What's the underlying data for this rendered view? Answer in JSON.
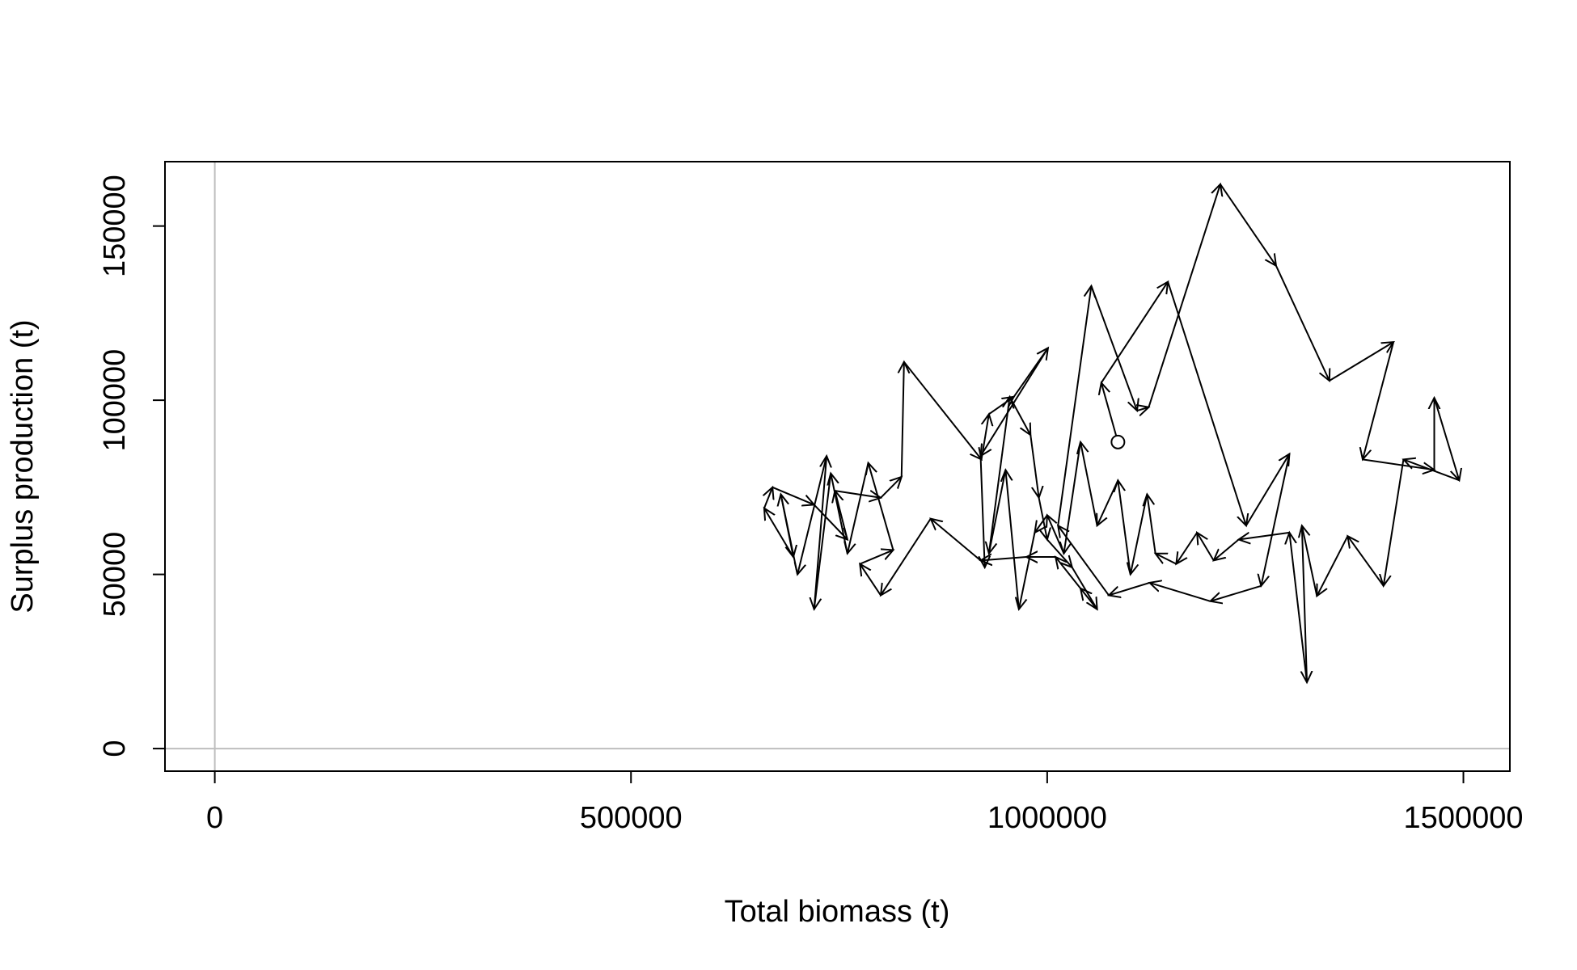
{
  "chart_data": {
    "type": "arrow-path",
    "x_label": "Total biomass (t)",
    "y_label": "Surplus production (t)",
    "x": [
      1085000,
      1065000,
      1145000,
      1239000,
      1291000,
      1257000,
      1196000,
      1123000,
      1074000,
      1013000,
      1053000,
      1108000,
      1122000,
      1208000,
      1275000,
      1339000,
      1416000,
      1379000,
      1465000,
      1465000,
      1495000,
      1428000,
      1404000,
      1361000,
      1324000,
      1306000,
      1312000,
      1291000,
      1230000,
      1200000,
      1180000,
      1155000,
      1130000,
      1120000,
      1100000,
      1085000,
      1060000,
      1040000,
      1020000,
      1000000,
      985000,
      966000,
      950000,
      930000,
      955000,
      980000,
      990000,
      1000000,
      1030000,
      1060000,
      1040000,
      1010000,
      975000,
      920000,
      860000,
      800000,
      775000,
      815000,
      785000,
      760000,
      740000,
      720000,
      735000,
      700000,
      680000,
      695000,
      660000,
      670000,
      720000,
      760000,
      745000,
      800000,
      825000,
      828000,
      921000,
      930000,
      960000,
      1001000,
      920000,
      925000
    ],
    "y": [
      88000,
      105000,
      134000,
      64000,
      84600,
      46700,
      42300,
      47600,
      44000,
      64000,
      132800,
      97000,
      98000,
      162000,
      138600,
      105600,
      116700,
      83000,
      80000,
      100700,
      77000,
      83000,
      46700,
      61000,
      43800,
      64000,
      19000,
      62000,
      60000,
      54000,
      62000,
      53000,
      56000,
      73000,
      50000,
      77000,
      64000,
      88000,
      56000,
      67000,
      62000,
      40000,
      80000,
      56000,
      101000,
      90000,
      72000,
      60000,
      52000,
      40000,
      46000,
      55000,
      55000,
      54000,
      66000,
      44000,
      53000,
      57000,
      82000,
      56000,
      79000,
      40000,
      84000,
      50000,
      73000,
      55000,
      69000,
      75000,
      70000,
      60000,
      74000,
      72000,
      78000,
      111000,
      83000,
      96000,
      101000,
      115000,
      84000,
      52000
    ],
    "color": "#000000",
    "start_marker": "open-circle",
    "reference_lines": {
      "x": 0,
      "y": 0,
      "color": "#bebebe"
    },
    "xlim": [
      -59840,
      1555840
    ],
    "ylim": [
      -6480,
      168480
    ],
    "xticks": [
      0,
      500000,
      1000000,
      1500000
    ],
    "yticks": [
      0,
      50000,
      100000,
      150000
    ]
  }
}
